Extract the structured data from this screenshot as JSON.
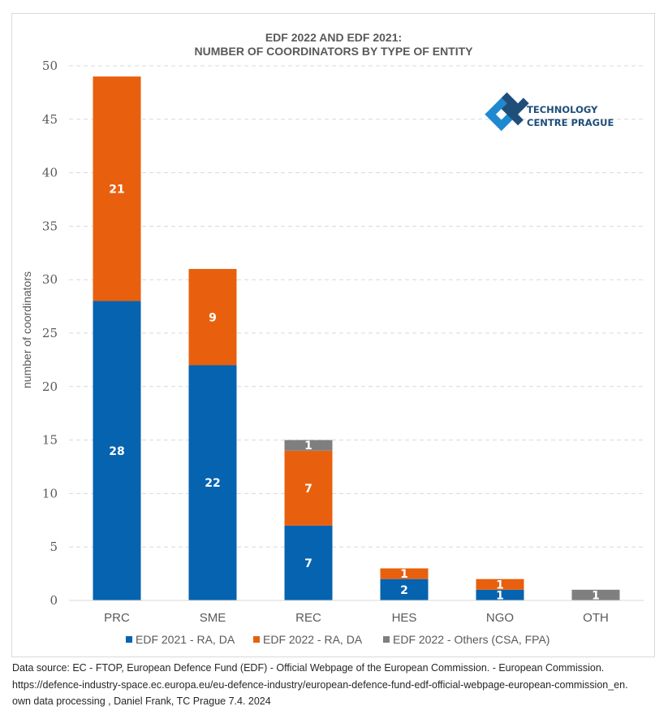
{
  "chart_data": {
    "type": "bar",
    "stacked": true,
    "title": [
      "EDF 2022 AND EDF 2021:",
      "NUMBER OF COORDINATORS BY TYPE OF ENTITY"
    ],
    "xlabel": "",
    "ylabel": "number of coordinators",
    "ylim": [
      0,
      50
    ],
    "yticks": [
      0,
      5,
      10,
      15,
      20,
      25,
      30,
      35,
      40,
      45,
      50
    ],
    "grid": true,
    "legend_position": "bottom",
    "categories": [
      "PRC",
      "SME",
      "REC",
      "HES",
      "NGO",
      "OTH"
    ],
    "series": [
      {
        "name": "EDF 2021 - RA, DA",
        "color": "#0563af",
        "values": [
          28,
          22,
          7,
          2,
          1,
          0
        ]
      },
      {
        "name": "EDF 2022 - RA, DA",
        "color": "#e8600e",
        "values": [
          21,
          9,
          7,
          1,
          1,
          0
        ]
      },
      {
        "name": "EDF 2022 - Others (CSA, FPA)",
        "color": "#7f7f7f",
        "values": [
          0,
          0,
          1,
          0,
          0,
          1
        ]
      }
    ]
  },
  "logo": {
    "line1": "TECHNOLOGY",
    "line2": "CENTRE PRAGUE",
    "icon": "tc-prague-logo-icon",
    "colors": {
      "light": "#1e88d0",
      "dark": "#1f4e79"
    }
  },
  "source": {
    "line1": "Data source: EC - FTOP, European Defence Fund (EDF) - Official Webpage of the European Commission. - European Commission.",
    "line2": "https://defence-industry-space.ec.europa.eu/eu-defence-industry/european-defence-fund-edf-official-webpage-european-commission_en.",
    "line3": "own data processing , Daniel Frank, TC Prague 7.4. 2024"
  }
}
